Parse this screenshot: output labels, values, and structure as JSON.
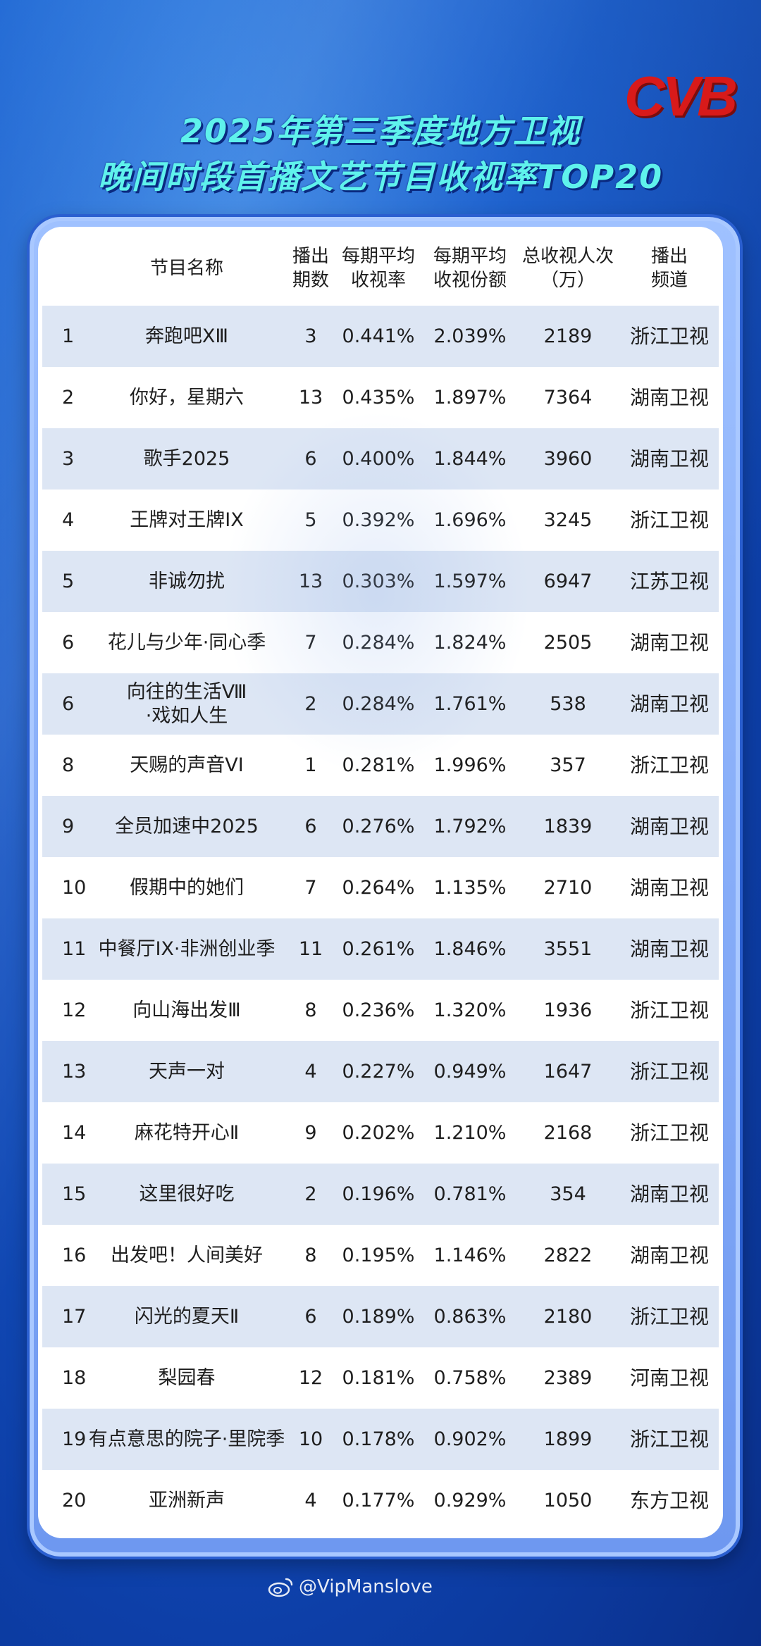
{
  "header": {
    "logo_text": "CVB",
    "title_line1": "2025年第三季度地方卫视",
    "title_line2": "晚间时段首播文艺节目收视率TOP20"
  },
  "table": {
    "columns": [
      "",
      "节目名称",
      "播出\n期数",
      "每期平均\n收视率",
      "每期平均\n收视份额",
      "总收视人次\n（万）",
      "播出\n频道"
    ],
    "rows": [
      {
        "rank": "1",
        "name": "奔跑吧XⅢ",
        "episodes": "3",
        "rating": "0.441%",
        "share": "2.039%",
        "viewers": "2189",
        "channel": "浙江卫视"
      },
      {
        "rank": "2",
        "name": "你好，星期六",
        "episodes": "13",
        "rating": "0.435%",
        "share": "1.897%",
        "viewers": "7364",
        "channel": "湖南卫视"
      },
      {
        "rank": "3",
        "name": "歌手2025",
        "episodes": "6",
        "rating": "0.400%",
        "share": "1.844%",
        "viewers": "3960",
        "channel": "湖南卫视"
      },
      {
        "rank": "4",
        "name": "王牌对王牌IX",
        "episodes": "5",
        "rating": "0.392%",
        "share": "1.696%",
        "viewers": "3245",
        "channel": "浙江卫视"
      },
      {
        "rank": "5",
        "name": "非诚勿扰",
        "episodes": "13",
        "rating": "0.303%",
        "share": "1.597%",
        "viewers": "6947",
        "channel": "江苏卫视"
      },
      {
        "rank": "6",
        "name": "花儿与少年·同心季",
        "episodes": "7",
        "rating": "0.284%",
        "share": "1.824%",
        "viewers": "2505",
        "channel": "湖南卫视"
      },
      {
        "rank": "6",
        "name": "向往的生活Ⅷ\n·戏如人生",
        "episodes": "2",
        "rating": "0.284%",
        "share": "1.761%",
        "viewers": "538",
        "channel": "湖南卫视"
      },
      {
        "rank": "8",
        "name": "天赐的声音VI",
        "episodes": "1",
        "rating": "0.281%",
        "share": "1.996%",
        "viewers": "357",
        "channel": "浙江卫视"
      },
      {
        "rank": "9",
        "name": "全员加速中2025",
        "episodes": "6",
        "rating": "0.276%",
        "share": "1.792%",
        "viewers": "1839",
        "channel": "湖南卫视"
      },
      {
        "rank": "10",
        "name": "假期中的她们",
        "episodes": "7",
        "rating": "0.264%",
        "share": "1.135%",
        "viewers": "2710",
        "channel": "湖南卫视"
      },
      {
        "rank": "11",
        "name": "中餐厅IX·非洲创业季",
        "episodes": "11",
        "rating": "0.261%",
        "share": "1.846%",
        "viewers": "3551",
        "channel": "湖南卫视"
      },
      {
        "rank": "12",
        "name": "向山海出发Ⅲ",
        "episodes": "8",
        "rating": "0.236%",
        "share": "1.320%",
        "viewers": "1936",
        "channel": "浙江卫视"
      },
      {
        "rank": "13",
        "name": "天声一对",
        "episodes": "4",
        "rating": "0.227%",
        "share": "0.949%",
        "viewers": "1647",
        "channel": "浙江卫视"
      },
      {
        "rank": "14",
        "name": "麻花特开心Ⅱ",
        "episodes": "9",
        "rating": "0.202%",
        "share": "1.210%",
        "viewers": "2168",
        "channel": "浙江卫视"
      },
      {
        "rank": "15",
        "name": "这里很好吃",
        "episodes": "2",
        "rating": "0.196%",
        "share": "0.781%",
        "viewers": "354",
        "channel": "湖南卫视"
      },
      {
        "rank": "16",
        "name": "出发吧！人间美好",
        "episodes": "8",
        "rating": "0.195%",
        "share": "1.146%",
        "viewers": "2822",
        "channel": "湖南卫视"
      },
      {
        "rank": "17",
        "name": "闪光的夏天Ⅱ",
        "episodes": "6",
        "rating": "0.189%",
        "share": "0.863%",
        "viewers": "2180",
        "channel": "浙江卫视"
      },
      {
        "rank": "18",
        "name": "梨园春",
        "episodes": "12",
        "rating": "0.181%",
        "share": "0.758%",
        "viewers": "2389",
        "channel": "河南卫视"
      },
      {
        "rank": "19",
        "name": "有点意思的院子·里院季",
        "episodes": "10",
        "rating": "0.178%",
        "share": "0.902%",
        "viewers": "1899",
        "channel": "浙江卫视"
      },
      {
        "rank": "20",
        "name": "亚洲新声",
        "episodes": "4",
        "rating": "0.177%",
        "share": "0.929%",
        "viewers": "1050",
        "channel": "东方卫视"
      }
    ]
  },
  "watermark": {
    "text": "@VipManslove",
    "icon": "weibo-icon"
  }
}
